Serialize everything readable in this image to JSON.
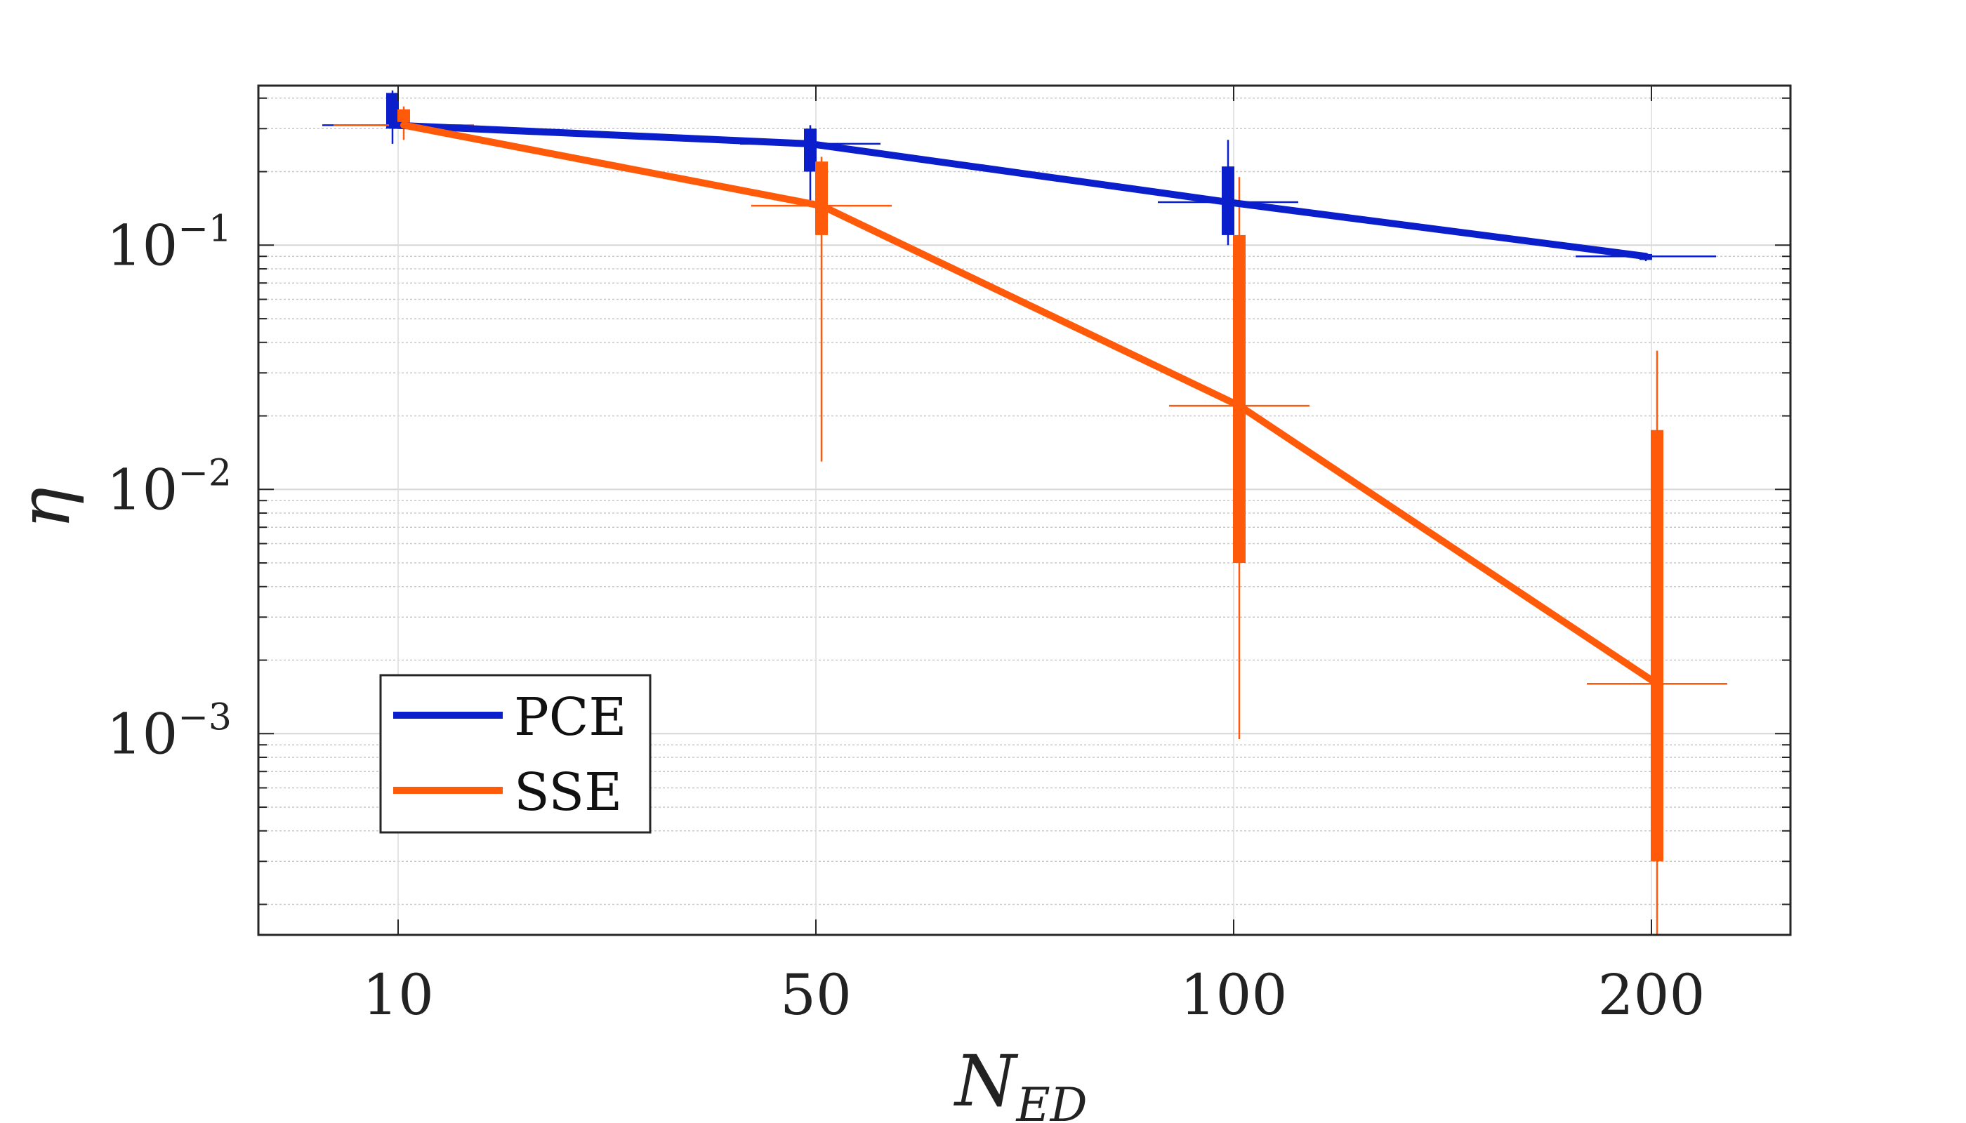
{
  "chart_data": {
    "type": "line",
    "title": "",
    "xlabel": "N",
    "xlabel_subscript": "ED",
    "ylabel": "η",
    "yscale": "log",
    "ylim": [
      0.00015,
      0.45
    ],
    "grid": true,
    "categories": [
      "10",
      "50",
      "100",
      "200"
    ],
    "y_ticks": [
      {
        "base": "10",
        "exp": "−1",
        "value": 0.1
      },
      {
        "base": "10",
        "exp": "−2",
        "value": 0.01
      },
      {
        "base": "10",
        "exp": "−3",
        "value": 0.001
      }
    ],
    "legend_position": "bottom-left",
    "series": [
      {
        "name": "PCE",
        "color": "#0a1ecc",
        "values": [
          0.31,
          0.26,
          0.15,
          0.09
        ],
        "boxes": [
          {
            "q1": 0.3,
            "q3": 0.42,
            "min": 0.26,
            "max": 0.43
          },
          {
            "q1": 0.2,
            "q3": 0.3,
            "min": 0.15,
            "max": 0.31
          },
          {
            "q1": 0.11,
            "q3": 0.21,
            "min": 0.1,
            "max": 0.27
          },
          {
            "q1": 0.087,
            "q3": 0.092,
            "min": 0.086,
            "max": 0.093
          }
        ]
      },
      {
        "name": "SSE",
        "color": "#ff5a0a",
        "values": [
          0.31,
          0.145,
          0.022,
          0.0016
        ],
        "boxes": [
          {
            "q1": 0.3,
            "q3": 0.36,
            "min": 0.27,
            "max": 0.37
          },
          {
            "q1": 0.11,
            "q3": 0.22,
            "min": 0.013,
            "max": 0.23
          },
          {
            "q1": 0.005,
            "q3": 0.11,
            "min": 0.00095,
            "max": 0.19
          },
          {
            "q1": 0.0003,
            "q3": 0.0175,
            "min": 0.00015,
            "max": 0.037
          }
        ]
      }
    ]
  }
}
